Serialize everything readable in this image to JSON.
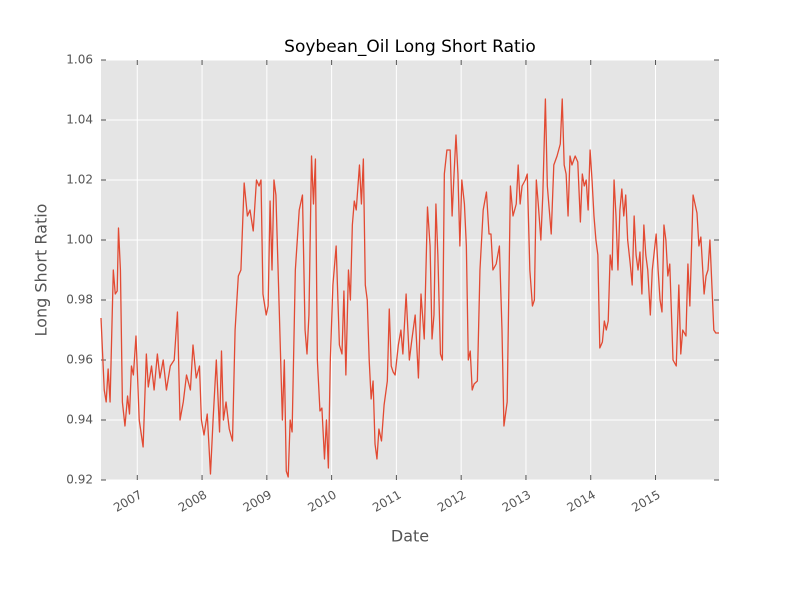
{
  "chart_data": {
    "type": "line",
    "title": "Soybean_Oil Long Short Ratio",
    "xlabel": "Date",
    "ylabel": "Long Short Ratio",
    "color": "#e24a33",
    "grid": true,
    "xlim": [
      2006.44,
      2015.98
    ],
    "xticks": [
      2007,
      2008,
      2009,
      2010,
      2011,
      2012,
      2013,
      2014,
      2015
    ],
    "ylim": [
      0.92,
      1.06
    ],
    "yticks": [
      0.92,
      0.94,
      0.96,
      0.98,
      {
        "value": 1.0,
        "label": "1.00"
      },
      1.02,
      1.04,
      1.06
    ],
    "x": [
      2006.44,
      2006.49,
      2006.52,
      2006.55,
      2006.58,
      2006.63,
      2006.66,
      2006.69,
      2006.71,
      2006.74,
      2006.77,
      2006.81,
      2006.85,
      2006.88,
      2006.91,
      2006.94,
      2006.98,
      2007.03,
      2007.09,
      2007.14,
      2007.17,
      2007.22,
      2007.26,
      2007.31,
      2007.35,
      2007.4,
      2007.45,
      2007.51,
      2007.57,
      2007.62,
      2007.66,
      2007.71,
      2007.76,
      2007.82,
      2007.86,
      2007.91,
      2007.96,
      2007.99,
      2008.03,
      2008.08,
      2008.13,
      2008.17,
      2008.22,
      2008.27,
      2008.3,
      2008.33,
      2008.37,
      2008.42,
      2008.47,
      2008.51,
      2008.56,
      2008.6,
      2008.65,
      2008.7,
      2008.74,
      2008.79,
      2008.84,
      2008.88,
      2008.91,
      2008.94,
      2008.99,
      2009.02,
      2009.05,
      2009.08,
      2009.11,
      2009.14,
      2009.19,
      2009.24,
      2009.27,
      2009.3,
      2009.33,
      2009.36,
      2009.39,
      2009.44,
      2009.5,
      2009.55,
      2009.59,
      2009.62,
      2009.65,
      2009.69,
      2009.72,
      2009.75,
      2009.78,
      2009.82,
      2009.85,
      2009.89,
      2009.92,
      2009.95,
      2009.98,
      2010.02,
      2010.07,
      2010.12,
      2010.16,
      2010.19,
      2010.22,
      2010.26,
      2010.29,
      2010.32,
      2010.35,
      2010.38,
      2010.43,
      2010.46,
      2010.49,
      2010.52,
      2010.55,
      2010.58,
      2010.61,
      2010.64,
      2010.67,
      2010.7,
      2010.73,
      2010.77,
      2010.81,
      2010.86,
      2010.89,
      2010.92,
      2010.95,
      2010.98,
      2011.03,
      2011.07,
      2011.1,
      2011.15,
      2011.2,
      2011.24,
      2011.29,
      2011.34,
      2011.38,
      2011.43,
      2011.48,
      2011.52,
      2011.55,
      2011.58,
      2011.61,
      2011.64,
      2011.68,
      2011.71,
      2011.74,
      2011.78,
      2011.83,
      2011.86,
      2011.89,
      2011.92,
      2011.95,
      2011.98,
      2012.01,
      2012.05,
      2012.08,
      2012.11,
      2012.14,
      2012.17,
      2012.2,
      2012.25,
      2012.29,
      2012.34,
      2012.39,
      2012.43,
      2012.46,
      2012.49,
      2012.54,
      2012.59,
      2012.63,
      2012.66,
      2012.71,
      2012.76,
      2012.8,
      2012.85,
      2012.88,
      2012.91,
      2012.94,
      2012.99,
      2013.02,
      2013.06,
      2013.1,
      2013.13,
      2013.16,
      2013.19,
      2013.23,
      2013.26,
      2013.3,
      2013.33,
      2013.36,
      2013.39,
      2013.43,
      2013.48,
      2013.53,
      2013.56,
      2013.59,
      2013.62,
      2013.65,
      2013.68,
      2013.71,
      2013.76,
      2013.8,
      2013.84,
      2013.87,
      2013.9,
      2013.93,
      2013.96,
      2013.99,
      2014.02,
      2014.05,
      2014.08,
      2014.11,
      2014.14,
      2014.18,
      2014.21,
      2014.24,
      2014.27,
      2014.3,
      2014.33,
      2014.36,
      2014.39,
      2014.42,
      2014.45,
      2014.48,
      2014.51,
      2014.54,
      2014.57,
      2014.61,
      2014.64,
      2014.67,
      2014.7,
      2014.73,
      2014.76,
      2014.79,
      2014.82,
      2014.85,
      2014.88,
      2014.92,
      2014.95,
      2014.98,
      2015.01,
      2015.04,
      2015.07,
      2015.1,
      2015.13,
      2015.16,
      2015.19,
      2015.22,
      2015.27,
      2015.32,
      2015.36,
      2015.39,
      2015.42,
      2015.47,
      2015.5,
      2015.53,
      2015.58,
      2015.61,
      2015.64,
      2015.67,
      2015.7,
      2015.75,
      2015.78,
      2015.81,
      2015.84,
      2015.87,
      2015.9,
      2015.93,
      2015.98
    ],
    "values": [
      0.974,
      0.95,
      0.946,
      0.957,
      0.946,
      0.99,
      0.982,
      0.983,
      1.004,
      0.99,
      0.946,
      0.938,
      0.948,
      0.942,
      0.958,
      0.955,
      0.968,
      0.94,
      0.931,
      0.962,
      0.951,
      0.958,
      0.95,
      0.962,
      0.954,
      0.96,
      0.95,
      0.958,
      0.96,
      0.976,
      0.94,
      0.946,
      0.955,
      0.95,
      0.965,
      0.954,
      0.958,
      0.94,
      0.935,
      0.942,
      0.922,
      0.94,
      0.96,
      0.936,
      0.963,
      0.94,
      0.946,
      0.937,
      0.933,
      0.97,
      0.988,
      0.99,
      1.019,
      1.008,
      1.01,
      1.003,
      1.02,
      1.018,
      1.02,
      0.982,
      0.975,
      0.978,
      1.013,
      0.99,
      1.02,
      1.015,
      0.978,
      0.94,
      0.96,
      0.923,
      0.921,
      0.94,
      0.936,
      0.99,
      1.01,
      1.015,
      0.97,
      0.962,
      0.975,
      1.028,
      1.012,
      1.027,
      0.96,
      0.943,
      0.944,
      0.927,
      0.94,
      0.924,
      0.96,
      0.985,
      0.998,
      0.965,
      0.962,
      0.983,
      0.955,
      0.99,
      0.98,
      1.005,
      1.013,
      1.01,
      1.025,
      1.012,
      1.027,
      0.985,
      0.98,
      0.96,
      0.947,
      0.953,
      0.932,
      0.927,
      0.937,
      0.933,
      0.945,
      0.953,
      0.977,
      0.958,
      0.956,
      0.955,
      0.965,
      0.97,
      0.962,
      0.982,
      0.96,
      0.967,
      0.975,
      0.954,
      0.982,
      0.967,
      1.011,
      0.998,
      0.967,
      0.975,
      1.012,
      0.995,
      0.962,
      0.96,
      1.022,
      1.03,
      1.03,
      1.008,
      1.022,
      1.035,
      1.022,
      0.998,
      1.02,
      1.012,
      0.998,
      0.96,
      0.963,
      0.95,
      0.952,
      0.953,
      0.99,
      1.01,
      1.016,
      1.002,
      1.002,
      0.99,
      0.992,
      0.998,
      0.97,
      0.938,
      0.946,
      1.018,
      1.008,
      1.012,
      1.025,
      1.012,
      1.018,
      1.02,
      1.022,
      0.99,
      0.978,
      0.98,
      1.02,
      1.012,
      1.0,
      1.015,
      1.047,
      1.018,
      1.01,
      1.002,
      1.025,
      1.028,
      1.032,
      1.047,
      1.025,
      1.022,
      1.008,
      1.028,
      1.025,
      1.028,
      1.026,
      1.006,
      1.022,
      1.018,
      1.02,
      1.01,
      1.03,
      1.02,
      1.008,
      1.0,
      0.995,
      0.964,
      0.966,
      0.973,
      0.97,
      0.973,
      0.995,
      0.99,
      1.02,
      1.008,
      0.99,
      1.01,
      1.017,
      1.008,
      1.015,
      1.0,
      0.992,
      0.985,
      1.008,
      0.995,
      0.99,
      0.996,
      0.982,
      1.005,
      0.995,
      0.99,
      0.975,
      0.99,
      0.996,
      1.002,
      0.99,
      0.98,
      0.976,
      1.005,
      1.0,
      0.988,
      0.992,
      0.96,
      0.958,
      0.985,
      0.962,
      0.97,
      0.968,
      0.992,
      0.978,
      1.015,
      1.012,
      1.009,
      0.998,
      1.001,
      0.982,
      0.988,
      0.99,
      1.0,
      0.985,
      0.97,
      0.969,
      0.969
    ]
  }
}
